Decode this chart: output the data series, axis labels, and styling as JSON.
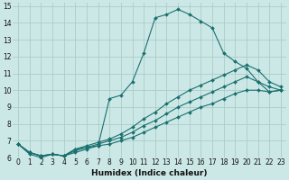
{
  "xlabel": "Humidex (Indice chaleur)",
  "background_color": "#cce8e6",
  "grid_color": "#aaccca",
  "line_color": "#1a7070",
  "xlim": [
    -0.5,
    23.5
  ],
  "ylim": [
    6,
    15.2
  ],
  "xticks": [
    0,
    1,
    2,
    3,
    4,
    5,
    6,
    7,
    8,
    9,
    10,
    11,
    12,
    13,
    14,
    15,
    16,
    17,
    18,
    19,
    20,
    21,
    22,
    23
  ],
  "yticks": [
    6,
    7,
    8,
    9,
    10,
    11,
    12,
    13,
    14,
    15
  ],
  "line1_x": [
    0,
    1,
    2,
    3,
    4,
    5,
    6,
    7,
    8,
    9,
    10,
    11,
    12,
    13,
    14,
    15,
    16,
    17,
    18,
    19,
    20,
    21,
    22,
    23
  ],
  "line1_y": [
    6.8,
    6.2,
    6.0,
    6.2,
    6.1,
    6.5,
    6.6,
    6.7,
    9.5,
    9.7,
    10.5,
    12.2,
    14.3,
    14.5,
    14.8,
    14.5,
    14.1,
    13.7,
    12.2,
    11.7,
    11.3,
    10.5,
    9.9,
    10.0
  ],
  "line2_x": [
    0,
    1,
    2,
    3,
    4,
    5,
    6,
    7,
    8,
    9,
    10,
    11,
    12,
    13,
    14,
    15,
    16,
    17,
    18,
    19,
    20,
    21,
    22,
    23
  ],
  "line2_y": [
    6.8,
    6.3,
    6.1,
    6.2,
    6.1,
    6.3,
    6.5,
    6.7,
    6.8,
    7.0,
    7.2,
    7.5,
    7.8,
    8.1,
    8.4,
    8.7,
    9.0,
    9.2,
    9.5,
    9.8,
    10.0,
    10.0,
    9.9,
    10.0
  ],
  "line3_x": [
    0,
    1,
    2,
    3,
    4,
    5,
    6,
    7,
    8,
    9,
    10,
    11,
    12,
    13,
    14,
    15,
    16,
    17,
    18,
    19,
    20,
    21,
    22,
    23
  ],
  "line3_y": [
    6.8,
    6.3,
    6.1,
    6.2,
    6.1,
    6.4,
    6.6,
    6.8,
    7.0,
    7.2,
    7.5,
    7.9,
    8.2,
    8.6,
    9.0,
    9.3,
    9.6,
    9.9,
    10.2,
    10.5,
    10.8,
    10.5,
    10.2,
    10.0
  ],
  "line4_x": [
    0,
    1,
    2,
    3,
    4,
    5,
    6,
    7,
    8,
    9,
    10,
    11,
    12,
    13,
    14,
    15,
    16,
    17,
    18,
    19,
    20,
    21,
    22,
    23
  ],
  "line4_y": [
    6.8,
    6.3,
    6.1,
    6.2,
    6.1,
    6.5,
    6.7,
    6.9,
    7.1,
    7.4,
    7.8,
    8.3,
    8.7,
    9.2,
    9.6,
    10.0,
    10.3,
    10.6,
    10.9,
    11.2,
    11.5,
    11.2,
    10.5,
    10.2
  ]
}
